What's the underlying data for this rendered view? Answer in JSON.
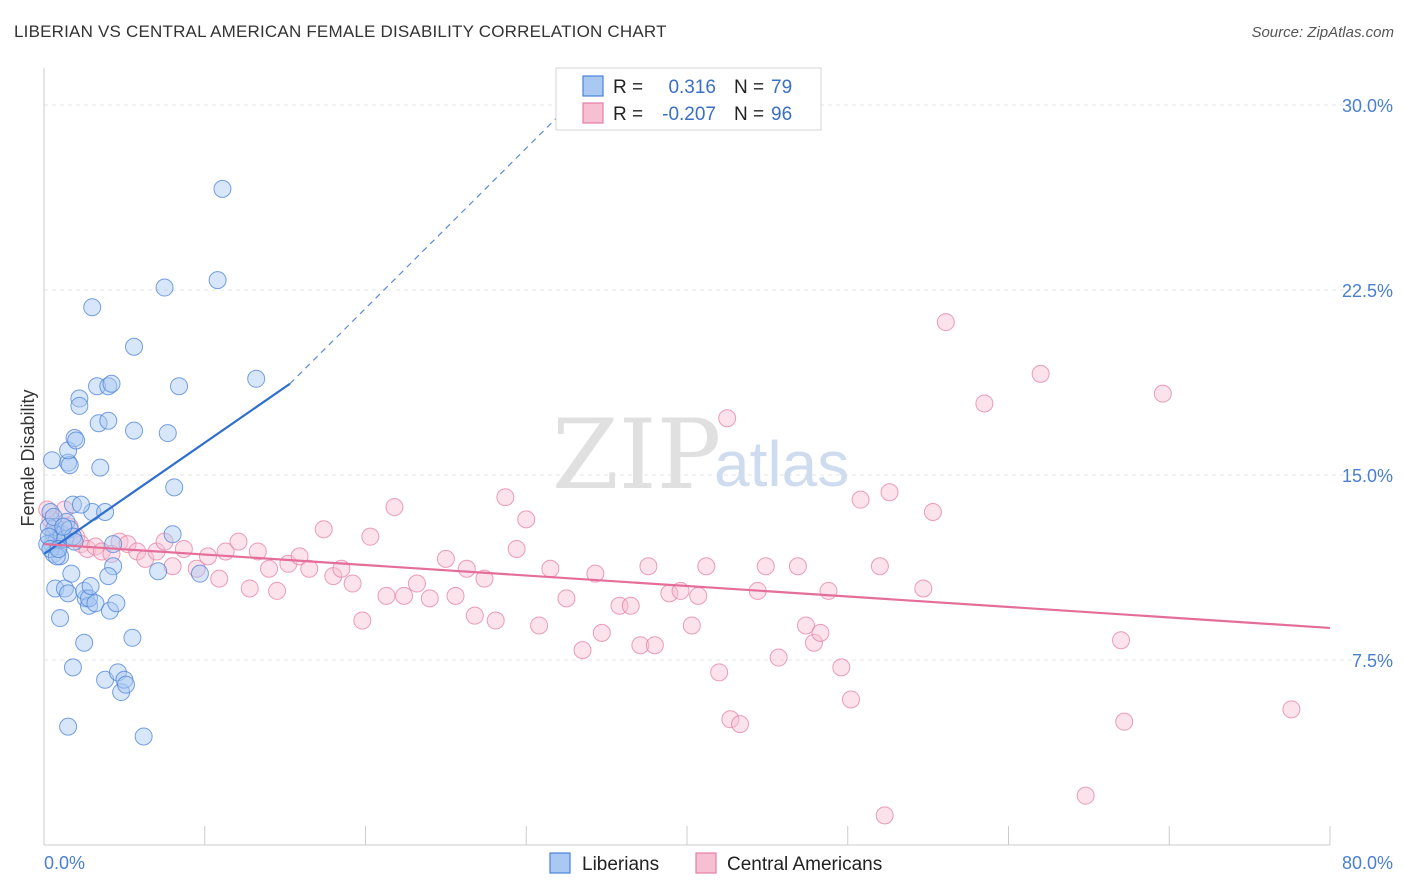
{
  "title": "LIBERIAN VS CENTRAL AMERICAN FEMALE DISABILITY CORRELATION CHART",
  "source": "Source: ZipAtlas.com",
  "watermark": {
    "part1": "ZIP",
    "part2": "atlas"
  },
  "colors": {
    "liberian_fill": "#a9c8f2",
    "liberian_stroke": "#4a82d8",
    "liberian_line": "#2f6fd0",
    "central_fill": "#f7bfd2",
    "central_stroke": "#e67fa3",
    "central_line": "#e46e98",
    "tick_label": "#4a7fd0",
    "grid": "#e4e4e4"
  },
  "stats_legend": {
    "r_label": "R =",
    "n_label": "N =",
    "rows": [
      {
        "series": "Liberians",
        "r": "0.316",
        "n": "79"
      },
      {
        "series": "Central Americans",
        "r": "-0.207",
        "n": "96"
      }
    ]
  },
  "bottom_legend": [
    "Liberians",
    "Central Americans"
  ],
  "chart_data": {
    "type": "scatter",
    "title": "LIBERIAN VS CENTRAL AMERICAN FEMALE DISABILITY CORRELATION CHART",
    "xlabel": "",
    "ylabel": "Female Disability",
    "xlim": [
      0,
      80
    ],
    "ylim": [
      0,
      31.5
    ],
    "x_tick_labels": [
      "0.0%",
      "80.0%"
    ],
    "y_ticks": [
      7.5,
      15.0,
      22.5,
      30.0
    ],
    "y_tick_labels": [
      "7.5%",
      "15.0%",
      "22.5%",
      "30.0%"
    ],
    "grid": true,
    "legend": "top-center",
    "series": [
      {
        "name": "Liberians",
        "trend": {
          "x0": 0,
          "y0": 11.8,
          "x1": 15.3,
          "y1": 18.7,
          "dashed_to_x": 35,
          "dashed_to_y": 31.5
        },
        "points": [
          [
            0.5,
            12.2
          ],
          [
            0.6,
            12.6
          ],
          [
            0.8,
            12.4
          ],
          [
            0.4,
            13.5
          ],
          [
            0.6,
            11.8
          ],
          [
            0.7,
            12.9
          ],
          [
            0.9,
            12.1
          ],
          [
            1.1,
            12.6
          ],
          [
            1.0,
            11.7
          ],
          [
            1.3,
            12.4
          ],
          [
            1.4,
            13.1
          ],
          [
            1.6,
            12.8
          ],
          [
            1.8,
            12.5
          ],
          [
            0.3,
            12.9
          ],
          [
            0.5,
            15.6
          ],
          [
            0.7,
            10.4
          ],
          [
            1.0,
            9.2
          ],
          [
            1.3,
            10.4
          ],
          [
            1.5,
            10.2
          ],
          [
            1.5,
            4.8
          ],
          [
            1.7,
            11.0
          ],
          [
            1.8,
            7.2
          ],
          [
            1.5,
            15.5
          ],
          [
            1.6,
            15.4
          ],
          [
            1.5,
            16.0
          ],
          [
            1.8,
            13.8
          ],
          [
            1.9,
            16.5
          ],
          [
            2.0,
            16.4
          ],
          [
            2.2,
            18.1
          ],
          [
            2.2,
            17.8
          ],
          [
            2.5,
            8.2
          ],
          [
            2.6,
            10.0
          ],
          [
            2.5,
            10.3
          ],
          [
            2.8,
            9.7
          ],
          [
            2.8,
            10.0
          ],
          [
            2.9,
            10.5
          ],
          [
            3.0,
            21.8
          ],
          [
            3.0,
            13.5
          ],
          [
            3.2,
            9.8
          ],
          [
            3.3,
            18.6
          ],
          [
            3.4,
            17.1
          ],
          [
            3.5,
            15.3
          ],
          [
            3.8,
            6.7
          ],
          [
            3.8,
            13.5
          ],
          [
            4.0,
            17.2
          ],
          [
            4.0,
            18.6
          ],
          [
            4.2,
            18.7
          ],
          [
            4.3,
            11.3
          ],
          [
            4.0,
            10.9
          ],
          [
            4.1,
            9.5
          ],
          [
            4.3,
            12.2
          ],
          [
            4.5,
            9.8
          ],
          [
            4.6,
            7.0
          ],
          [
            4.8,
            6.2
          ],
          [
            5.0,
            6.7
          ],
          [
            5.1,
            6.5
          ],
          [
            5.5,
            8.4
          ],
          [
            5.6,
            20.2
          ],
          [
            5.6,
            16.8
          ],
          [
            6.2,
            4.4
          ],
          [
            7.1,
            11.1
          ],
          [
            7.5,
            22.6
          ],
          [
            7.7,
            16.7
          ],
          [
            8.0,
            12.6
          ],
          [
            8.1,
            14.5
          ],
          [
            8.4,
            18.6
          ],
          [
            9.7,
            11.0
          ],
          [
            10.8,
            22.9
          ],
          [
            11.1,
            26.6
          ],
          [
            13.2,
            18.9
          ],
          [
            0.2,
            12.2
          ],
          [
            0.3,
            12.5
          ],
          [
            0.4,
            12.0
          ],
          [
            0.6,
            13.3
          ],
          [
            0.8,
            11.7
          ],
          [
            1.2,
            12.9
          ],
          [
            2.3,
            13.8
          ],
          [
            1.9,
            12.3
          ],
          [
            0.9,
            12.0
          ]
        ]
      },
      {
        "name": "Central Americans",
        "trend": {
          "x0": 0,
          "y0": 12.2,
          "x1": 80,
          "y1": 8.8
        },
        "points": [
          [
            0.4,
            13.2
          ],
          [
            0.6,
            12.8
          ],
          [
            0.9,
            12.5
          ],
          [
            1.3,
            13.6
          ],
          [
            1.6,
            12.9
          ],
          [
            2.0,
            12.5
          ],
          [
            2.3,
            12.2
          ],
          [
            2.7,
            12.0
          ],
          [
            3.2,
            12.1
          ],
          [
            3.6,
            11.9
          ],
          [
            4.2,
            11.8
          ],
          [
            4.7,
            12.3
          ],
          [
            5.2,
            12.2
          ],
          [
            5.8,
            11.9
          ],
          [
            6.3,
            11.6
          ],
          [
            7.0,
            11.9
          ],
          [
            7.5,
            12.3
          ],
          [
            8.0,
            11.3
          ],
          [
            8.7,
            12.0
          ],
          [
            9.5,
            11.2
          ],
          [
            10.2,
            11.7
          ],
          [
            10.9,
            10.8
          ],
          [
            11.3,
            11.9
          ],
          [
            12.1,
            12.3
          ],
          [
            12.8,
            10.4
          ],
          [
            13.3,
            11.9
          ],
          [
            14.0,
            11.2
          ],
          [
            14.5,
            10.3
          ],
          [
            15.2,
            11.4
          ],
          [
            15.9,
            11.7
          ],
          [
            16.5,
            11.2
          ],
          [
            17.4,
            12.8
          ],
          [
            18.0,
            10.9
          ],
          [
            18.5,
            11.2
          ],
          [
            19.2,
            10.6
          ],
          [
            19.8,
            9.1
          ],
          [
            20.3,
            12.5
          ],
          [
            21.3,
            10.1
          ],
          [
            21.8,
            13.7
          ],
          [
            22.4,
            10.1
          ],
          [
            23.2,
            10.6
          ],
          [
            24.0,
            10.0
          ],
          [
            25.0,
            11.6
          ],
          [
            25.6,
            10.1
          ],
          [
            26.3,
            11.2
          ],
          [
            26.8,
            9.3
          ],
          [
            27.4,
            10.8
          ],
          [
            28.1,
            9.1
          ],
          [
            28.7,
            14.1
          ],
          [
            29.4,
            12.0
          ],
          [
            30.0,
            13.2
          ],
          [
            30.8,
            8.9
          ],
          [
            31.5,
            11.2
          ],
          [
            32.5,
            10.0
          ],
          [
            33.5,
            7.9
          ],
          [
            34.3,
            11.0
          ],
          [
            34.7,
            8.6
          ],
          [
            35.8,
            9.7
          ],
          [
            36.5,
            9.7
          ],
          [
            37.1,
            8.1
          ],
          [
            37.6,
            11.3
          ],
          [
            38.0,
            8.1
          ],
          [
            38.9,
            10.2
          ],
          [
            39.6,
            10.3
          ],
          [
            40.3,
            8.9
          ],
          [
            40.7,
            10.1
          ],
          [
            41.2,
            11.3
          ],
          [
            42.0,
            7.0
          ],
          [
            42.5,
            17.3
          ],
          [
            42.7,
            5.1
          ],
          [
            43.3,
            4.9
          ],
          [
            44.4,
            10.3
          ],
          [
            44.9,
            11.3
          ],
          [
            45.7,
            7.6
          ],
          [
            46.9,
            11.3
          ],
          [
            47.4,
            8.9
          ],
          [
            47.9,
            8.2
          ],
          [
            48.3,
            8.6
          ],
          [
            48.8,
            10.3
          ],
          [
            49.6,
            7.2
          ],
          [
            50.2,
            5.9
          ],
          [
            50.8,
            14.0
          ],
          [
            52.0,
            11.3
          ],
          [
            52.3,
            1.2
          ],
          [
            52.6,
            14.3
          ],
          [
            54.7,
            10.4
          ],
          [
            55.3,
            13.5
          ],
          [
            56.1,
            21.2
          ],
          [
            58.5,
            17.9
          ],
          [
            62.0,
            19.1
          ],
          [
            64.8,
            2.0
          ],
          [
            67.0,
            8.3
          ],
          [
            67.2,
            5.0
          ],
          [
            69.6,
            18.3
          ],
          [
            77.6,
            5.5
          ],
          [
            0.2,
            13.6
          ]
        ]
      }
    ]
  }
}
